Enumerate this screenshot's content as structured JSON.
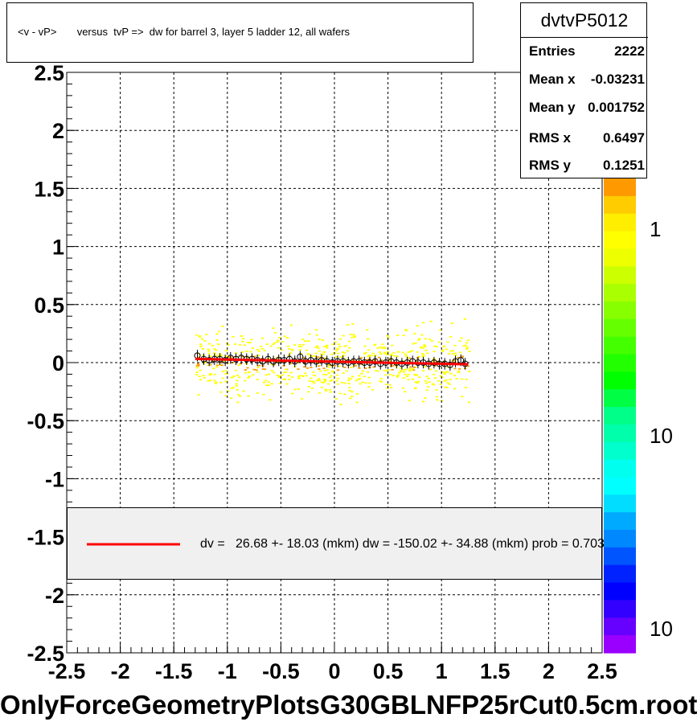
{
  "title": "<v - vP>       versus  tvP =>  dw for barrel 3, layer 5 ladder 12, all wafers",
  "stats": {
    "name": "dvtvP5012",
    "rows": [
      {
        "label": "Entries",
        "value": "2222"
      },
      {
        "label": "Mean x",
        "value": "-0.03231"
      },
      {
        "label": "Mean y",
        "value": "0.001752"
      },
      {
        "label": "RMS x",
        "value": "0.6497"
      },
      {
        "label": "RMS y",
        "value": "0.1251"
      }
    ]
  },
  "legend": {
    "text": "dv =   26.68 +- 18.03 (mkm) dw = -150.02 +- 34.88 (mkm) prob = 0.703",
    "line_color": "#ff0000"
  },
  "footer": "OnlyForceGeometryPlotsG30GBLNFP25rCut0.5cm.root",
  "colorbar": {
    "labels": [
      "1",
      "10",
      "10"
    ]
  },
  "chart_data": {
    "type": "heatmap",
    "xlim": [
      -2.5,
      2.5
    ],
    "ylim": [
      -2.5,
      2.5
    ],
    "x_ticks": [
      "-2.5",
      "-2",
      "-1.5",
      "-1",
      "-0.5",
      "0",
      "0.5",
      "1",
      "1.5",
      "2",
      "2.5"
    ],
    "y_ticks": [
      "2.5",
      "2",
      "1.5",
      "1",
      "0.5",
      "0",
      "-0.5",
      "-1",
      "-1.5",
      "-2",
      "-2.5"
    ],
    "grid": true,
    "colors": {
      "low": "#ffff00",
      "mid": "#ff9900",
      "profile": "#000000",
      "fit": "#ff0000",
      "mean_markers": "#9900cc"
    },
    "profile": {
      "x": [
        -1.28,
        -1.22,
        -1.17,
        -1.12,
        -1.07,
        -1.02,
        -0.97,
        -0.92,
        -0.87,
        -0.82,
        -0.77,
        -0.72,
        -0.67,
        -0.62,
        -0.57,
        -0.52,
        -0.47,
        -0.42,
        -0.37,
        -0.32,
        -0.27,
        -0.22,
        -0.17,
        -0.12,
        -0.07,
        -0.02,
        0.03,
        0.08,
        0.13,
        0.18,
        0.23,
        0.28,
        0.33,
        0.38,
        0.43,
        0.48,
        0.53,
        0.58,
        0.63,
        0.68,
        0.73,
        0.78,
        0.83,
        0.88,
        0.93,
        0.98,
        1.03,
        1.08,
        1.13,
        1.18,
        1.22
      ],
      "y": [
        0.06,
        0.03,
        0.02,
        0.03,
        0.03,
        0.02,
        0.04,
        0.03,
        0.04,
        0.03,
        0.03,
        0.02,
        0.01,
        0.03,
        0.01,
        0.02,
        0.02,
        0.03,
        0.01,
        0.05,
        0.01,
        0.02,
        0.01,
        0.02,
        0.01,
        0.0,
        0.01,
        0.01,
        0.0,
        0.01,
        0.01,
        0.0,
        0.0,
        0.01,
        -0.01,
        0.0,
        0.01,
        0.0,
        -0.01,
        0.0,
        0.01,
        0.0,
        0.0,
        -0.01,
        0.0,
        -0.01,
        -0.01,
        -0.02,
        0.01,
        0.02,
        -0.01
      ]
    },
    "fit_line": {
      "x": [
        -1.3,
        1.25
      ],
      "y": [
        0.032,
        -0.015
      ]
    }
  }
}
